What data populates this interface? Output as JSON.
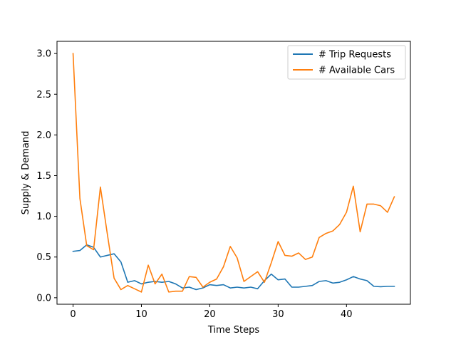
{
  "chart_data": {
    "type": "line",
    "title": "",
    "xlabel": "Time Steps",
    "ylabel": "Supply & Demand",
    "xlim": [
      -2.35,
      49.35
    ],
    "ylim": [
      -0.08,
      3.15
    ],
    "xticks": [
      0,
      10,
      20,
      30,
      40
    ],
    "yticks": [
      0.0,
      0.5,
      1.0,
      1.5,
      2.0,
      2.5,
      3.0
    ],
    "ytick_labels": [
      "0.0",
      "0.5",
      "1.0",
      "1.5",
      "2.0",
      "2.5",
      "3.0"
    ],
    "grid": false,
    "legend_position": "top-right",
    "x": [
      0,
      1,
      2,
      3,
      4,
      5,
      6,
      7,
      8,
      9,
      10,
      11,
      12,
      13,
      14,
      15,
      16,
      17,
      18,
      19,
      20,
      21,
      22,
      23,
      24,
      25,
      26,
      27,
      28,
      29,
      30,
      31,
      32,
      33,
      34,
      35,
      36,
      37,
      38,
      39,
      40,
      41,
      42,
      43,
      44,
      45,
      46,
      47
    ],
    "series": [
      {
        "name": "# Trip Requests",
        "color": "#1f77b4",
        "values": [
          0.57,
          0.58,
          0.65,
          0.62,
          0.5,
          0.52,
          0.54,
          0.44,
          0.19,
          0.21,
          0.17,
          0.19,
          0.2,
          0.19,
          0.2,
          0.17,
          0.12,
          0.13,
          0.1,
          0.12,
          0.16,
          0.15,
          0.16,
          0.12,
          0.13,
          0.12,
          0.13,
          0.11,
          0.21,
          0.29,
          0.22,
          0.23,
          0.13,
          0.13,
          0.14,
          0.15,
          0.2,
          0.21,
          0.18,
          0.19,
          0.22,
          0.26,
          0.23,
          0.21,
          0.14,
          0.135,
          0.14,
          0.14
        ]
      },
      {
        "name": "# Available Cars",
        "color": "#ff7f0e",
        "values": [
          3.0,
          1.22,
          0.64,
          0.59,
          1.36,
          0.79,
          0.24,
          0.1,
          0.15,
          0.11,
          0.07,
          0.4,
          0.17,
          0.29,
          0.07,
          0.08,
          0.08,
          0.26,
          0.25,
          0.13,
          0.19,
          0.23,
          0.38,
          0.63,
          0.49,
          0.2,
          0.26,
          0.32,
          0.19,
          0.43,
          0.69,
          0.52,
          0.51,
          0.55,
          0.47,
          0.5,
          0.74,
          0.79,
          0.82,
          0.9,
          1.05,
          1.37,
          0.81,
          1.15,
          1.15,
          1.13,
          1.05,
          1.24
        ]
      }
    ]
  }
}
